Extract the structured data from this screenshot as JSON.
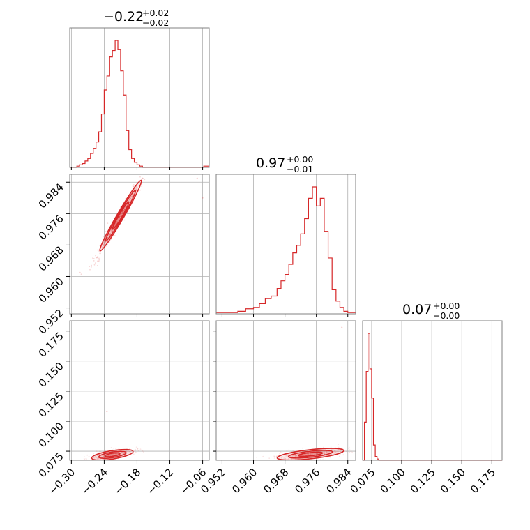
{
  "chart_data": {
    "type": "corner",
    "color": "#d62728",
    "parameters": [
      {
        "title": {
          "value": "−0.22",
          "plus": "+0.02",
          "minus": "−0.02"
        },
        "ticks": [
          -0.3,
          -0.24,
          -0.18,
          -0.12,
          -0.06
        ],
        "tick_labels": [
          "−0.30",
          "−0.24",
          "−0.18",
          "−0.12",
          "−0.06"
        ],
        "range": [
          -0.303,
          -0.048
        ]
      },
      {
        "title": {
          "value": "0.97",
          "plus": "+0.00",
          "minus": "−0.01"
        },
        "ticks": [
          0.952,
          0.96,
          0.968,
          0.976,
          0.984
        ],
        "tick_labels": [
          "0.952",
          "0.960",
          "0.968",
          "0.976",
          "0.984"
        ],
        "range": [
          0.9505,
          0.986
        ]
      },
      {
        "title": {
          "value": "0.07",
          "plus": "+0.00",
          "minus": "−0.00"
        },
        "ticks": [
          0.075,
          0.1,
          0.125,
          0.15,
          0.175
        ],
        "tick_labels": [
          "0.075",
          "0.100",
          "0.125",
          "0.150",
          "0.175"
        ],
        "range": [
          0.0675,
          0.1835
        ]
      }
    ],
    "histograms": [
      {
        "param": 0,
        "edges": [
          -0.303,
          -0.238,
          -0.2335,
          -0.229,
          -0.2245,
          -0.22,
          -0.2155,
          -0.211,
          -0.2065,
          -0.202,
          -0.048
        ],
        "bins": [
          [
            -0.303,
            -0.29,
            0.0
          ],
          [
            -0.29,
            -0.285,
            0.01
          ],
          [
            -0.285,
            -0.28,
            0.02
          ],
          [
            -0.28,
            -0.275,
            0.03
          ],
          [
            -0.275,
            -0.27,
            0.05
          ],
          [
            -0.27,
            -0.265,
            0.07
          ],
          [
            -0.265,
            -0.26,
            0.11
          ],
          [
            -0.26,
            -0.255,
            0.15
          ],
          [
            -0.255,
            -0.25,
            0.2
          ],
          [
            -0.25,
            -0.245,
            0.28
          ],
          [
            -0.245,
            -0.24,
            0.42
          ],
          [
            -0.24,
            -0.235,
            0.61
          ],
          [
            -0.235,
            -0.23,
            0.72
          ],
          [
            -0.23,
            -0.225,
            0.87
          ],
          [
            -0.225,
            -0.22,
            0.92
          ],
          [
            -0.22,
            -0.215,
            1.0
          ],
          [
            -0.215,
            -0.21,
            0.93
          ],
          [
            -0.21,
            -0.205,
            0.76
          ],
          [
            -0.205,
            -0.2,
            0.57
          ],
          [
            -0.2,
            -0.195,
            0.29
          ],
          [
            -0.195,
            -0.19,
            0.14
          ],
          [
            -0.19,
            -0.185,
            0.07
          ],
          [
            -0.185,
            -0.18,
            0.04
          ],
          [
            -0.18,
            -0.175,
            0.02
          ],
          [
            -0.175,
            -0.17,
            0.01
          ],
          [
            -0.17,
            -0.058,
            0.0
          ],
          [
            -0.058,
            -0.048,
            0.01
          ]
        ]
      },
      {
        "param": 1,
        "bins": [
          [
            0.9505,
            0.954,
            0.01
          ],
          [
            0.954,
            0.956,
            0.01
          ],
          [
            0.956,
            0.958,
            0.02
          ],
          [
            0.958,
            0.96,
            0.04
          ],
          [
            0.96,
            0.9615,
            0.05
          ],
          [
            0.9615,
            0.963,
            0.08
          ],
          [
            0.963,
            0.9645,
            0.12
          ],
          [
            0.9645,
            0.966,
            0.14
          ],
          [
            0.966,
            0.967,
            0.2
          ],
          [
            0.967,
            0.968,
            0.26
          ],
          [
            0.968,
            0.969,
            0.31
          ],
          [
            0.969,
            0.97,
            0.39
          ],
          [
            0.97,
            0.971,
            0.48
          ],
          [
            0.971,
            0.972,
            0.54
          ],
          [
            0.972,
            0.973,
            0.63
          ],
          [
            0.973,
            0.974,
            0.75
          ],
          [
            0.974,
            0.975,
            0.91
          ],
          [
            0.975,
            0.976,
            1.0
          ],
          [
            0.976,
            0.977,
            0.85
          ],
          [
            0.977,
            0.978,
            0.91
          ],
          [
            0.978,
            0.979,
            0.65
          ],
          [
            0.979,
            0.98,
            0.44
          ],
          [
            0.98,
            0.981,
            0.19
          ],
          [
            0.981,
            0.982,
            0.1
          ],
          [
            0.982,
            0.983,
            0.05
          ],
          [
            0.983,
            0.984,
            0.02
          ],
          [
            0.984,
            0.986,
            0.01
          ]
        ]
      },
      {
        "param": 2,
        "bins": [
          [
            0.0675,
            0.069,
            0.0
          ],
          [
            0.069,
            0.0705,
            0.3
          ],
          [
            0.0705,
            0.072,
            0.7
          ],
          [
            0.072,
            0.0735,
            1.0
          ],
          [
            0.0735,
            0.075,
            0.72
          ],
          [
            0.075,
            0.0765,
            0.49
          ],
          [
            0.0765,
            0.078,
            0.12
          ],
          [
            0.078,
            0.0795,
            0.03
          ],
          [
            0.0795,
            0.081,
            0.01
          ],
          [
            0.081,
            0.1835,
            0.0
          ]
        ]
      }
    ],
    "scatter_2d": [
      {
        "x_param": 0,
        "y_param": 1,
        "ridge": [
          [
            -0.275,
            0.96
          ],
          [
            -0.25,
            0.966
          ],
          [
            -0.23,
            0.971
          ],
          [
            -0.215,
            0.975
          ],
          [
            -0.195,
            0.98
          ],
          [
            -0.17,
            0.985
          ]
        ],
        "outliers": [
          [
            -0.06,
            0.98
          ],
          [
            -0.07,
            0.985
          ]
        ]
      },
      {
        "x_param": 0,
        "y_param": 2,
        "center": [
          -0.225,
          0.072
        ],
        "outliers": [
          [
            -0.235,
            0.108
          ]
        ]
      },
      {
        "x_param": 1,
        "y_param": 2,
        "center": [
          0.9745,
          0.0725
        ],
        "outliers": [
          [
            0.9825,
            0.178
          ]
        ]
      }
    ]
  }
}
